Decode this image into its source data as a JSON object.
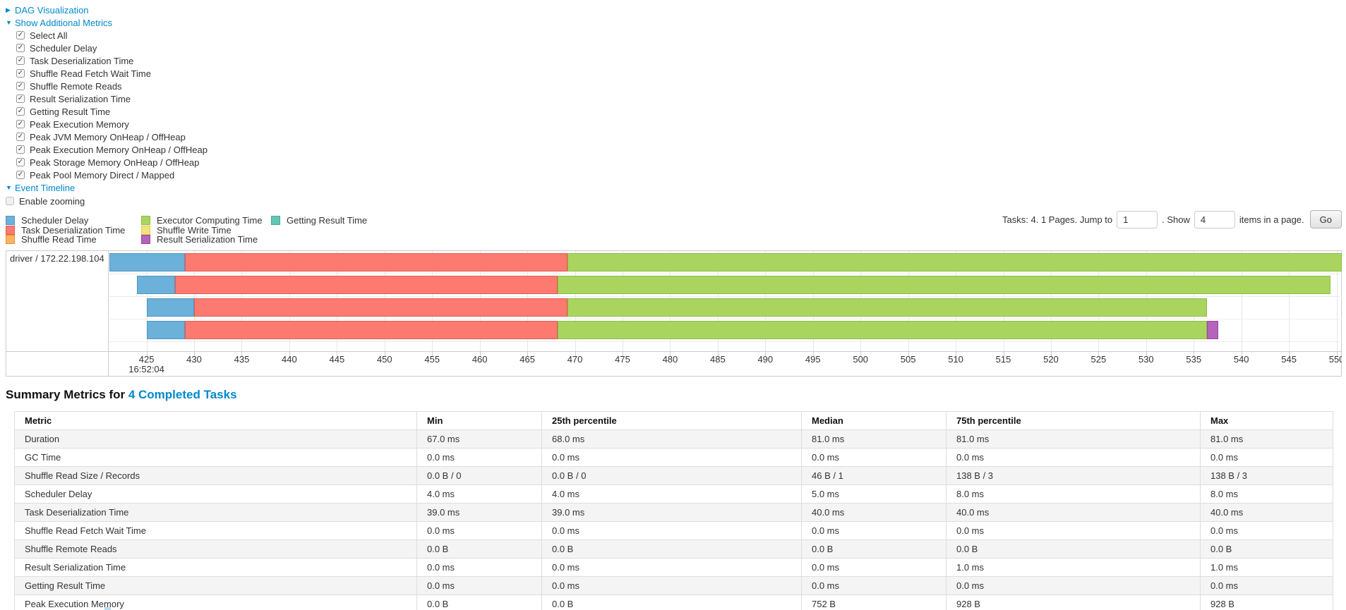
{
  "controls": {
    "dag": {
      "arrow": "▶",
      "label": "DAG Visualization"
    },
    "additional_metrics": {
      "arrow": "▼",
      "label": "Show Additional Metrics"
    },
    "checkboxes": [
      {
        "label": "Select All",
        "checked": true
      },
      {
        "label": "Scheduler Delay",
        "checked": true
      },
      {
        "label": "Task Deserialization Time",
        "checked": true
      },
      {
        "label": "Shuffle Read Fetch Wait Time",
        "checked": true
      },
      {
        "label": "Shuffle Remote Reads",
        "checked": true
      },
      {
        "label": "Result Serialization Time",
        "checked": true
      },
      {
        "label": "Getting Result Time",
        "checked": true
      },
      {
        "label": "Peak Execution Memory",
        "checked": true
      },
      {
        "label": "Peak JVM Memory OnHeap / OffHeap",
        "checked": true
      },
      {
        "label": "Peak Execution Memory OnHeap / OffHeap",
        "checked": true
      },
      {
        "label": "Peak Storage Memory OnHeap / OffHeap",
        "checked": true
      },
      {
        "label": "Peak Pool Memory Direct / Mapped",
        "checked": true
      }
    ],
    "event_timeline": {
      "arrow": "▼",
      "label": "Event Timeline"
    },
    "enable_zooming": {
      "label": "Enable zooming",
      "checked": false
    }
  },
  "colors": {
    "scheduler-delay": {
      "fill": "#6CB1D9",
      "stroke": "#4F96C4"
    },
    "task-deserialization": {
      "fill": "#FC7A6F",
      "stroke": "#E45C50"
    },
    "shuffle-read": {
      "fill": "#FBB45E",
      "stroke": "#E2923B"
    },
    "executor-computing": {
      "fill": "#A9D55F",
      "stroke": "#8CBD47"
    },
    "shuffle-write": {
      "fill": "#F3E57C",
      "stroke": "#DAC94F"
    },
    "result-serialization": {
      "fill": "#B563BC",
      "stroke": "#9845A0"
    },
    "getting-result": {
      "fill": "#61C6B2",
      "stroke": "#3FAD98"
    }
  },
  "legend": {
    "columns": [
      [
        {
          "key": "scheduler-delay",
          "label": "Scheduler Delay"
        },
        {
          "key": "task-deserialization",
          "label": "Task Deserialization Time"
        },
        {
          "key": "shuffle-read",
          "label": "Shuffle Read Time"
        }
      ],
      [
        {
          "key": "executor-computing",
          "label": "Executor Computing Time"
        },
        {
          "key": "shuffle-write",
          "label": "Shuffle Write Time"
        },
        {
          "key": "result-serialization",
          "label": "Result Serialization Time"
        }
      ],
      [
        {
          "key": "getting-result",
          "label": "Getting Result Time"
        }
      ]
    ]
  },
  "pagination": {
    "tasks_text": "Tasks: 4. 1 Pages. Jump to",
    "jump_value": "1",
    "show_text": ". Show",
    "show_value": "4",
    "items_text": "items in a page.",
    "go_label": "Go"
  },
  "chart_data": {
    "type": "timeline",
    "title": "Event Timeline",
    "executor_label": "driver / 172.22.198.104",
    "x_axis": {
      "unit": "milliseconds within second 16:52:04",
      "domain": [
        421.1,
        550.55
      ],
      "ticks": [
        425,
        430,
        435,
        440,
        445,
        450,
        455,
        460,
        465,
        470,
        475,
        480,
        485,
        490,
        495,
        500,
        505,
        510,
        515,
        520,
        525,
        530,
        535,
        540,
        545,
        550
      ],
      "time_label": "16:52:04",
      "time_label_tick": 425
    },
    "tasks": [
      {
        "segments": [
          {
            "type": "scheduler-delay",
            "start": 421.1,
            "end": 429.0
          },
          {
            "type": "task-deserialization",
            "start": 429.0,
            "end": 469.2
          },
          {
            "type": "executor-computing",
            "start": 469.2,
            "end": 550.55
          }
        ]
      },
      {
        "segments": [
          {
            "type": "scheduler-delay",
            "start": 424.0,
            "end": 428.0
          },
          {
            "type": "task-deserialization",
            "start": 428.0,
            "end": 468.2
          },
          {
            "type": "executor-computing",
            "start": 468.2,
            "end": 549.4
          }
        ]
      },
      {
        "segments": [
          {
            "type": "scheduler-delay",
            "start": 425.0,
            "end": 430.0
          },
          {
            "type": "task-deserialization",
            "start": 430.0,
            "end": 469.2
          },
          {
            "type": "executor-computing",
            "start": 469.2,
            "end": 536.4
          }
        ]
      },
      {
        "segments": [
          {
            "type": "scheduler-delay",
            "start": 425.0,
            "end": 429.0
          },
          {
            "type": "task-deserialization",
            "start": 429.0,
            "end": 468.2
          },
          {
            "type": "executor-computing",
            "start": 468.2,
            "end": 536.4
          },
          {
            "type": "result-serialization",
            "start": 536.4,
            "end": 537.6
          }
        ]
      }
    ]
  },
  "summary": {
    "title_prefix": "Summary Metrics for ",
    "title_link": "4 Completed Tasks",
    "table": {
      "headers": [
        "Metric",
        "Min",
        "25th percentile",
        "Median",
        "75th percentile",
        "Max"
      ],
      "rows": [
        [
          "Duration",
          "67.0 ms",
          "68.0 ms",
          "81.0 ms",
          "81.0 ms",
          "81.0 ms"
        ],
        [
          "GC Time",
          "0.0 ms",
          "0.0 ms",
          "0.0 ms",
          "0.0 ms",
          "0.0 ms"
        ],
        [
          "Shuffle Read Size / Records",
          "0.0 B / 0",
          "0.0 B / 0",
          "46 B / 1",
          "138 B / 3",
          "138 B / 3"
        ],
        [
          "Scheduler Delay",
          "4.0 ms",
          "4.0 ms",
          "5.0 ms",
          "8.0 ms",
          "8.0 ms"
        ],
        [
          "Task Deserialization Time",
          "39.0 ms",
          "39.0 ms",
          "40.0 ms",
          "40.0 ms",
          "40.0 ms"
        ],
        [
          "Shuffle Read Fetch Wait Time",
          "0.0 ms",
          "0.0 ms",
          "0.0 ms",
          "0.0 ms",
          "0.0 ms"
        ],
        [
          "Shuffle Remote Reads",
          "0.0 B",
          "0.0 B",
          "0.0 B",
          "0.0 B",
          "0.0 B"
        ],
        [
          "Result Serialization Time",
          "0.0 ms",
          "0.0 ms",
          "0.0 ms",
          "1.0 ms",
          "1.0 ms"
        ],
        [
          "Getting Result Time",
          "0.0 ms",
          "0.0 ms",
          "0.0 ms",
          "0.0 ms",
          "0.0 ms"
        ],
        [
          "Peak Execution Memory",
          "0.0 B",
          "0.0 B",
          "752 B",
          "928 B",
          "928 B"
        ]
      ]
    }
  }
}
